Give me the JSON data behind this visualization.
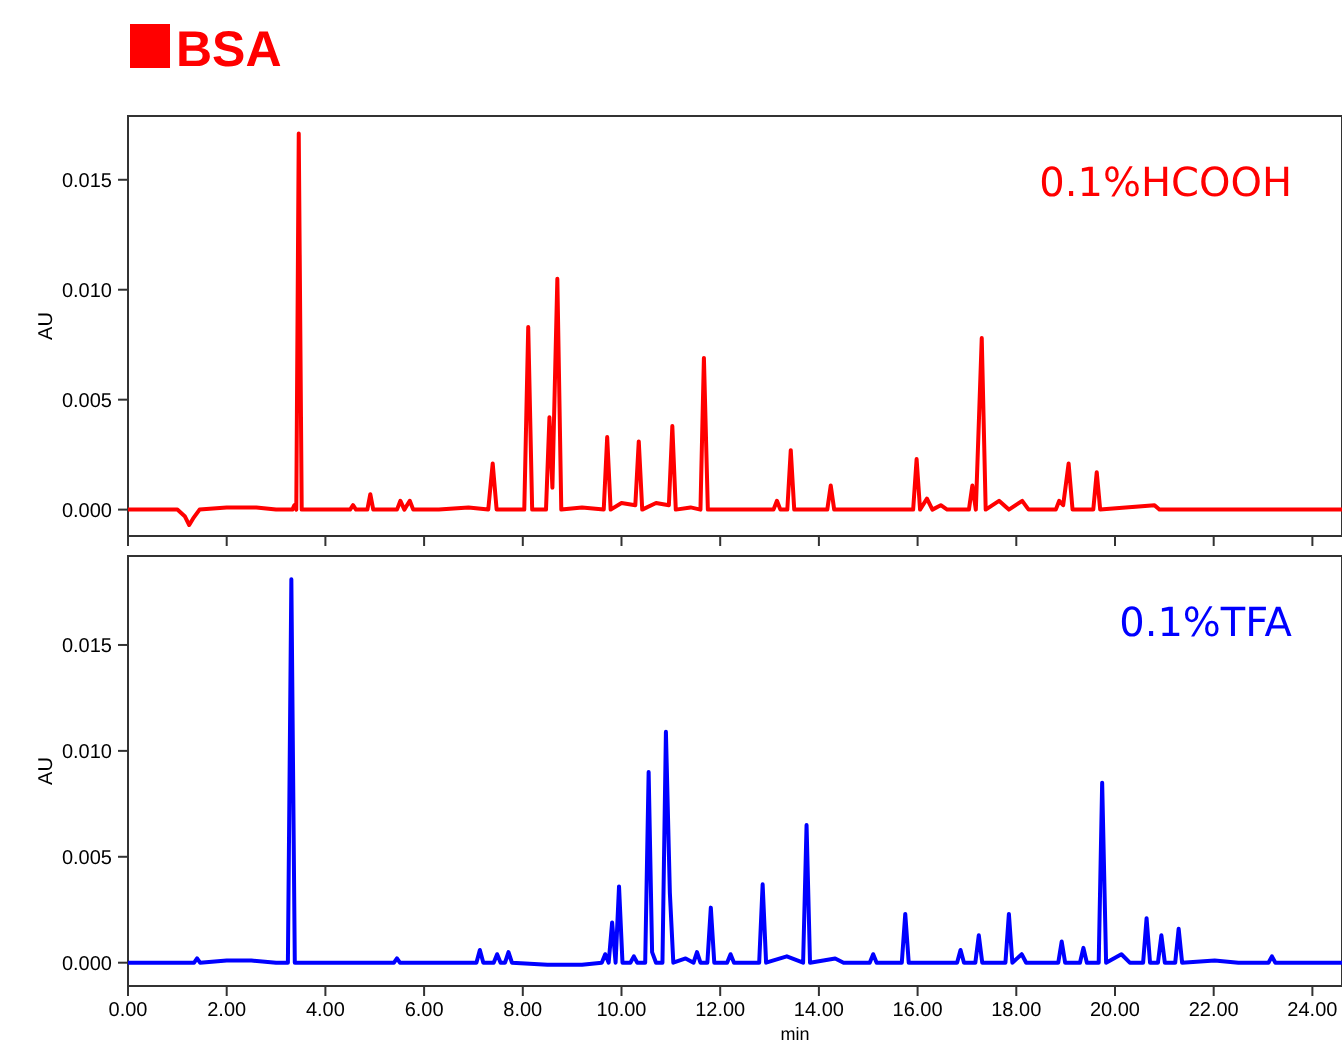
{
  "chart_data": [
    {
      "type": "line",
      "title": "BSA",
      "ylabel": "AU",
      "xlim": [
        0,
        24.6
      ],
      "ylim": [
        -0.0012,
        0.0179
      ],
      "tick_labels": "y",
      "grid": false,
      "xticks": [
        {
          "value": 0,
          "label": null
        },
        {
          "value": 2,
          "label": null
        },
        {
          "value": 4,
          "label": null
        },
        {
          "value": 6,
          "label": null
        },
        {
          "value": 8,
          "label": null
        },
        {
          "value": 10,
          "label": null
        },
        {
          "value": 12,
          "label": null
        },
        {
          "value": 14,
          "label": null
        },
        {
          "value": 16,
          "label": null
        },
        {
          "value": 18,
          "label": null
        },
        {
          "value": 20,
          "label": null
        },
        {
          "value": 22,
          "label": null
        },
        {
          "value": 24,
          "label": null
        }
      ],
      "yticks": [
        {
          "value": 0,
          "label": "0.000"
        },
        {
          "value": 0.005,
          "label": "0.005"
        },
        {
          "value": 0.01,
          "label": "0.010"
        },
        {
          "value": 0.015,
          "label": "0.015"
        }
      ],
      "series": [
        {
          "name": "0.1%HCOOH",
          "color": "#ff0000",
          "x": [
            0,
            0.5,
            1.0,
            1.15,
            1.24,
            1.32,
            1.45,
            2.0,
            2.6,
            3.0,
            3.33,
            3.37,
            3.41,
            3.46,
            3.52,
            4.0,
            4.5,
            4.56,
            4.62,
            4.85,
            4.91,
            4.97,
            5.45,
            5.52,
            5.6,
            5.71,
            5.78,
            6.3,
            6.9,
            7.3,
            7.39,
            7.47,
            8.03,
            8.11,
            8.19,
            8.47,
            8.54,
            8.6,
            8.7,
            8.78,
            9.2,
            9.64,
            9.71,
            9.78,
            10.0,
            10.28,
            10.35,
            10.42,
            10.7,
            10.96,
            11.03,
            11.1,
            11.4,
            11.6,
            11.67,
            11.75,
            12.3,
            13.08,
            13.15,
            13.22,
            13.36,
            13.43,
            13.5,
            14.17,
            14.24,
            14.31,
            15.0,
            15.91,
            15.98,
            16.05,
            16.19,
            16.3,
            16.47,
            16.6,
            17.04,
            17.11,
            17.18,
            17.3,
            17.38,
            17.65,
            17.85,
            18.12,
            18.25,
            18.8,
            18.87,
            18.95,
            19.06,
            19.14,
            19.56,
            19.63,
            19.7,
            20.8,
            20.9,
            22,
            23,
            24.6
          ],
          "values": [
            0,
            0,
            0,
            -0.0003,
            -0.0007,
            -0.0004,
            0,
            0.0001,
            0.0001,
            0,
            0,
            0.0002,
            0,
            0.0171,
            0,
            0,
            0,
            0.0002,
            0,
            0,
            0.0007,
            0,
            0,
            0.0004,
            0,
            0.0004,
            0,
            0,
            0.0001,
            0,
            0.0021,
            0,
            0,
            0.0083,
            0,
            0,
            0.0042,
            0.001,
            0.0105,
            0,
            0.0001,
            0,
            0.0033,
            0,
            0.0003,
            0.0002,
            0.0031,
            0,
            0.0003,
            0.0002,
            0.0038,
            0,
            0.0001,
            0,
            0.0069,
            0,
            0,
            0,
            0.0004,
            0,
            0,
            0.0027,
            0,
            0,
            0.0011,
            0,
            0,
            0,
            0.0023,
            0,
            0.0005,
            0,
            0.0002,
            0,
            0,
            0.0011,
            0,
            0.0078,
            0,
            0.0004,
            0,
            0.0004,
            0,
            0,
            0.0004,
            0.0002,
            0.0021,
            0,
            0,
            0.0017,
            0,
            0.0002,
            0,
            0,
            0,
            0
          ]
        }
      ]
    },
    {
      "type": "line",
      "xlabel": "min",
      "ylabel": "AU",
      "xlim": [
        0,
        24.6
      ],
      "ylim": [
        -0.0011,
        0.0192
      ],
      "grid": false,
      "xticks": [
        {
          "value": 0,
          "label": "0.00"
        },
        {
          "value": 2,
          "label": "2.00"
        },
        {
          "value": 4,
          "label": "4.00"
        },
        {
          "value": 6,
          "label": "6.00"
        },
        {
          "value": 8,
          "label": "8.00"
        },
        {
          "value": 10,
          "label": "10.00"
        },
        {
          "value": 12,
          "label": "12.00"
        },
        {
          "value": 14,
          "label": "14.00"
        },
        {
          "value": 16,
          "label": "16.00"
        },
        {
          "value": 18,
          "label": "18.00"
        },
        {
          "value": 20,
          "label": "20.00"
        },
        {
          "value": 22,
          "label": "22.00"
        },
        {
          "value": 24,
          "label": "24.00"
        }
      ],
      "yticks": [
        {
          "value": 0,
          "label": "0.000"
        },
        {
          "value": 0.005,
          "label": "0.005"
        },
        {
          "value": 0.01,
          "label": "0.010"
        },
        {
          "value": 0.015,
          "label": "0.015"
        }
      ],
      "series": [
        {
          "name": "0.1%TFA",
          "color": "#0000ff",
          "x": [
            0,
            1.0,
            1.34,
            1.4,
            1.46,
            2.0,
            2.5,
            3.0,
            3.24,
            3.31,
            3.38,
            4.0,
            5.0,
            5.39,
            5.45,
            5.51,
            6.5,
            7.06,
            7.13,
            7.2,
            7.41,
            7.48,
            7.55,
            7.64,
            7.71,
            7.78,
            8.5,
            9.2,
            9.6,
            9.67,
            9.74,
            9.81,
            9.88,
            9.95,
            10.02,
            10.18,
            10.25,
            10.32,
            10.48,
            10.55,
            10.62,
            10.7,
            10.83,
            10.9,
            10.98,
            11.05,
            11.3,
            11.46,
            11.53,
            11.6,
            11.74,
            11.81,
            11.88,
            12.14,
            12.21,
            12.28,
            12.79,
            12.86,
            12.93,
            13.35,
            13.68,
            13.75,
            13.82,
            14.33,
            14.5,
            15.03,
            15.1,
            15.17,
            15.68,
            15.75,
            15.82,
            16.8,
            16.87,
            16.94,
            17.17,
            17.24,
            17.31,
            17.78,
            17.85,
            17.92,
            18.11,
            18.2,
            18.85,
            18.92,
            18.99,
            19.29,
            19.36,
            19.43,
            19.67,
            19.74,
            19.82,
            20.13,
            20.3,
            20.57,
            20.64,
            20.71,
            20.87,
            20.94,
            21.01,
            21.22,
            21.29,
            21.36,
            22.02,
            22.5,
            23.11,
            23.18,
            23.25,
            24.6
          ],
          "values": [
            0,
            0,
            0,
            0.0002,
            0,
            0.0001,
            0.0001,
            0,
            0,
            0.0181,
            0,
            0,
            0,
            0,
            0.0002,
            0,
            0,
            0,
            0.0006,
            0,
            0,
            0.0004,
            0,
            0,
            0.0005,
            0,
            -0.0001,
            -0.0001,
            0,
            0.0004,
            0,
            0.0019,
            0,
            0.0036,
            0,
            0,
            0.0003,
            0,
            0,
            0.009,
            0.0005,
            0,
            0,
            0.0109,
            0.0033,
            0,
            0.0002,
            0,
            0.0005,
            0,
            0,
            0.0026,
            0,
            0,
            0.0004,
            0,
            0,
            0.0037,
            0,
            0.0003,
            0,
            0.0065,
            0,
            0.0002,
            0,
            0,
            0.0004,
            0,
            0,
            0.0023,
            0,
            0,
            0.0006,
            0,
            0,
            0.0013,
            0,
            0,
            0.0023,
            0,
            0.0004,
            0,
            0,
            0.001,
            0,
            0,
            0.0007,
            0,
            0,
            0.0085,
            0,
            0.0004,
            0,
            0,
            0.0021,
            0,
            0,
            0.0013,
            0,
            0,
            0.0016,
            0,
            0.0001,
            0,
            0,
            0.0003,
            0,
            0
          ]
        }
      ]
    }
  ]
}
